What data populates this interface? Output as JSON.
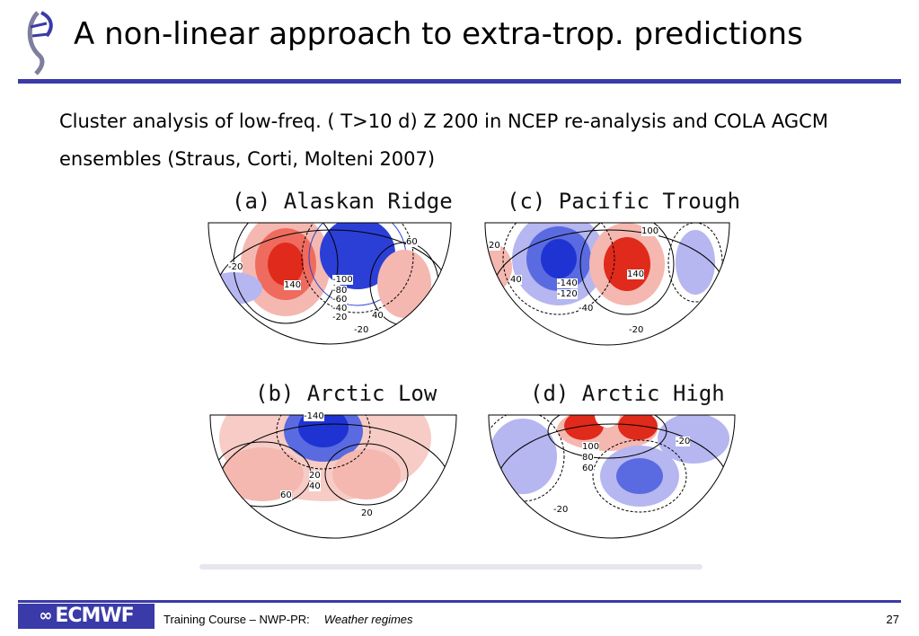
{
  "slide": {
    "title": "A non-linear approach to extra-trop. predictions",
    "subtitle": "Cluster analysis of low-freq. ( T>10 d) Z 200 in NCEP re-analysis and COLA AGCM ensembles (Straus, Corti, Molteni 2007)"
  },
  "figure": {
    "panels": [
      {
        "label": "(a) Alaskan Ridge",
        "contours": [
          "-20",
          "60",
          "140",
          "-100",
          "-80",
          "-60",
          "-40",
          "-20",
          "40",
          "-20"
        ]
      },
      {
        "label": "(c) Pacific Trough",
        "contours": [
          "20",
          "100",
          "40",
          "-140",
          "-120",
          "140",
          "-40",
          "-20"
        ]
      },
      {
        "label": "(b) Arctic Low",
        "contours": [
          "-140",
          "60",
          "40",
          "20",
          "20"
        ]
      },
      {
        "label": "(d) Arctic High",
        "contours": [
          "100",
          "80",
          "60",
          "-20",
          "-20"
        ]
      }
    ]
  },
  "footer": {
    "logo_text": "ECMWF",
    "course": "Training Course – NWP-PR:",
    "topic": "Weather regimes",
    "page": "27"
  },
  "colors": {
    "accent": "#3a3aa8",
    "positive": "#e23a2e",
    "negative": "#2b3fd6"
  }
}
